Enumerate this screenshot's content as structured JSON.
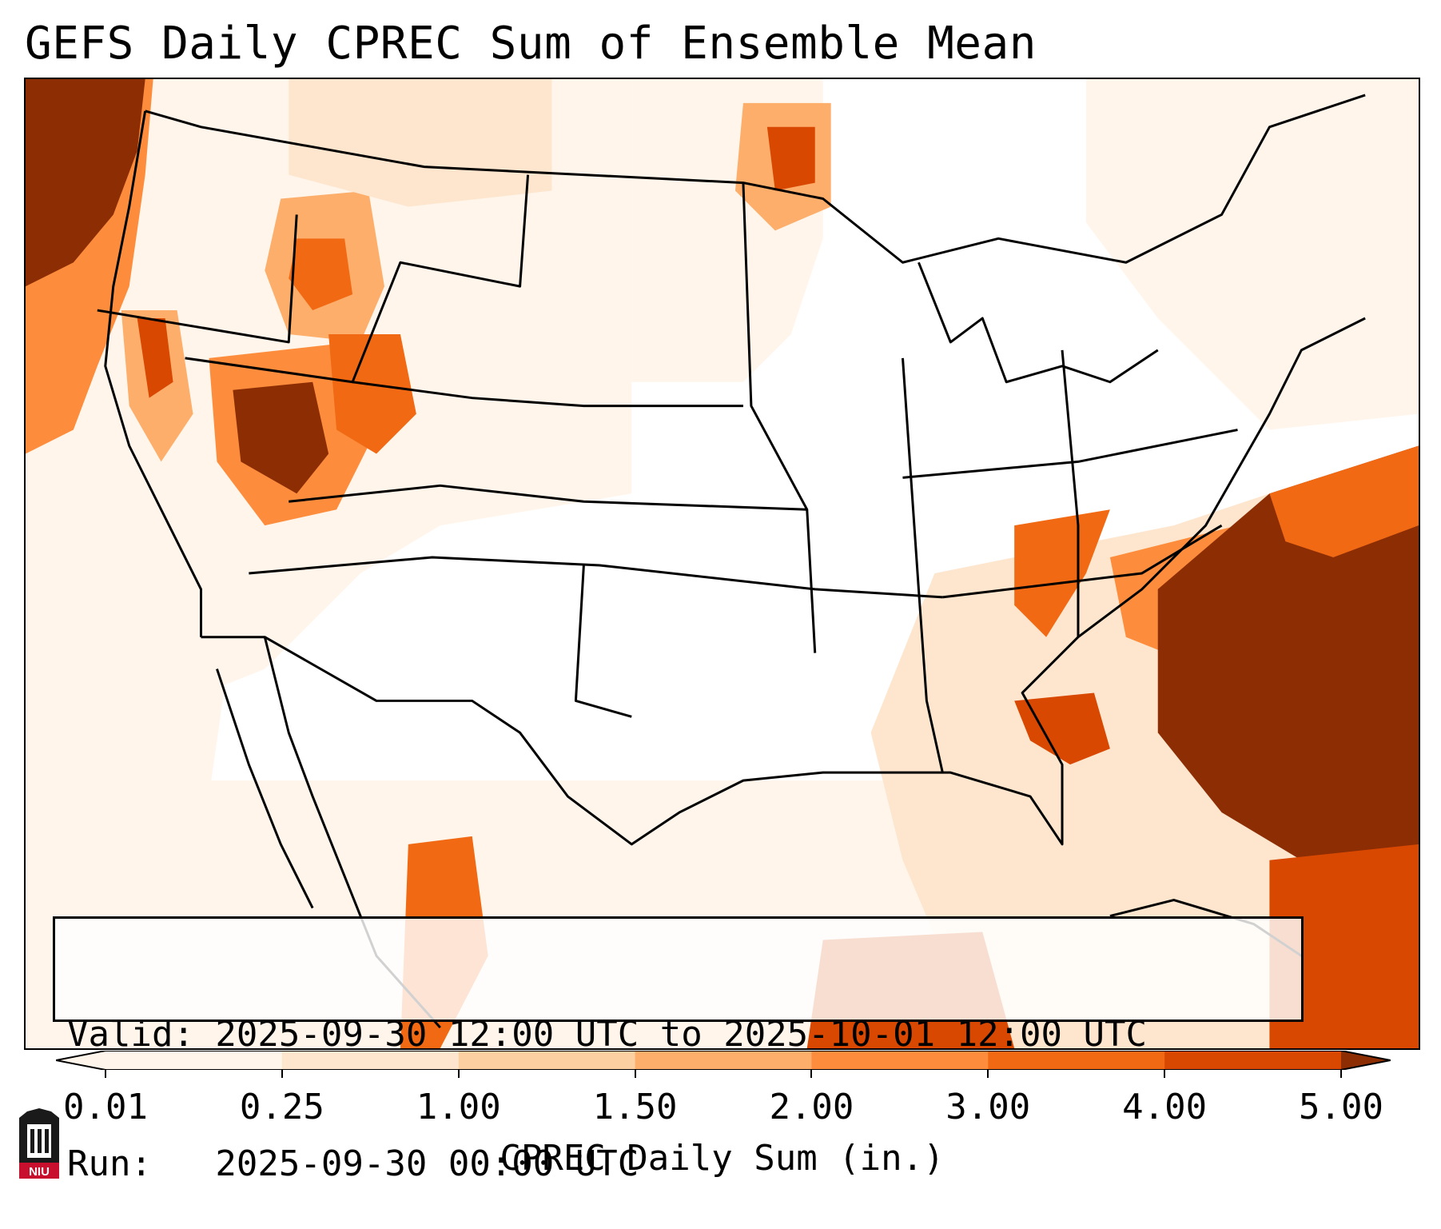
{
  "title": "GEFS Daily CPREC Sum of Ensemble Mean",
  "info": {
    "valid_line": "Valid: 2025-09-30 12:00 UTC to 2025-10-01 12:00 UTC",
    "run_line": "Run:   2025-09-30 00:00 UTC"
  },
  "colorbar": {
    "label": "CPREC Daily Sum (in.)",
    "ticks": [
      "0.01",
      "0.25",
      "1.00",
      "1.50",
      "2.00",
      "3.00",
      "4.00",
      "5.00"
    ],
    "colors": [
      "#fff5eb",
      "#fee6ce",
      "#fdd0a2",
      "#fdae6b",
      "#fd8d3c",
      "#f16913",
      "#d94801",
      "#8c2d04"
    ],
    "extend": "both"
  },
  "map": {
    "region": "Continental United States",
    "projection": "Lambert Conformal",
    "field": "CPREC daily sum, inches"
  },
  "logo": {
    "text": "NIU"
  }
}
